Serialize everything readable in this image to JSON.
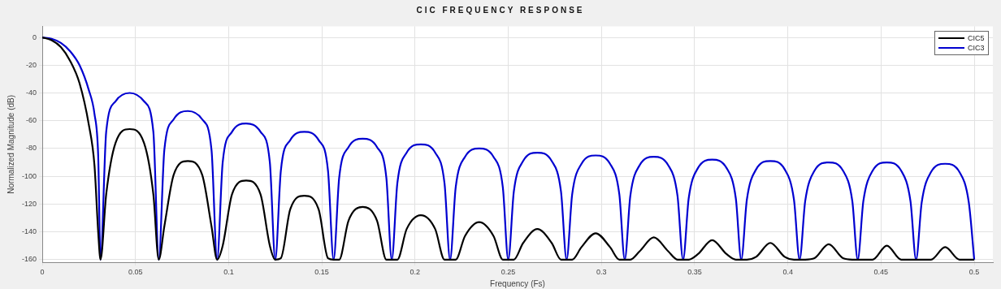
{
  "chart_data": {
    "type": "line",
    "title": "CIC FREQUENCY RESPONSE",
    "xlabel": "Frequency (Fs)",
    "ylabel": "Normalized Magnitude (dB)",
    "x": [
      0,
      0.005,
      0.01,
      0.015,
      0.02,
      0.025,
      0.028,
      0.03,
      0.03125,
      0.0343,
      0.0393,
      0.0469,
      0.0546,
      0.0596,
      0.0625,
      0.0655,
      0.0705,
      0.0781,
      0.0858,
      0.0908,
      0.0938,
      0.0968,
      0.1018,
      0.1094,
      0.1171,
      0.1221,
      0.125,
      0.128,
      0.133,
      0.1406,
      0.1483,
      0.1533,
      0.1563,
      0.1593,
      0.1643,
      0.1719,
      0.1796,
      0.1846,
      0.1875,
      0.1905,
      0.1955,
      0.2031,
      0.2108,
      0.2158,
      0.2188,
      0.2218,
      0.2268,
      0.2344,
      0.2421,
      0.2471,
      0.25,
      0.253,
      0.258,
      0.2656,
      0.2733,
      0.2783,
      0.2813,
      0.2843,
      0.2893,
      0.2969,
      0.3046,
      0.3096,
      0.3125,
      0.3155,
      0.3205,
      0.3281,
      0.3358,
      0.3408,
      0.3438,
      0.3468,
      0.3518,
      0.3594,
      0.3671,
      0.3721,
      0.375,
      0.378,
      0.383,
      0.3906,
      0.3983,
      0.4033,
      0.4063,
      0.4093,
      0.4143,
      0.4219,
      0.4296,
      0.4346,
      0.4375,
      0.4405,
      0.4455,
      0.4531,
      0.4608,
      0.4658,
      0.4688,
      0.4718,
      0.4768,
      0.4844,
      0.4921,
      0.4971,
      0.5
    ],
    "series": [
      {
        "name": "CIC5",
        "color": "#000000",
        "values": [
          0,
          -2,
          -7,
          -17,
          -33,
          -63,
          -92,
          -140,
          -160,
          -113,
          -76,
          -66,
          -76,
          -113,
          -160,
          -136,
          -99,
          -89,
          -99,
          -136,
          -160,
          -150,
          -113,
          -103,
          -113,
          -150,
          -160,
          -159,
          -124,
          -114,
          -124,
          -159,
          -160,
          -160,
          -132,
          -122,
          -132,
          -160,
          -160,
          -160,
          -138,
          -128,
          -138,
          -160,
          -160,
          -160,
          -143,
          -133,
          -143,
          -160,
          -160,
          -160,
          -148,
          -138,
          -148,
          -160,
          -160,
          -160,
          -151,
          -141,
          -151,
          -160,
          -160,
          -160,
          -154,
          -144,
          -154,
          -160,
          -160,
          -160,
          -156,
          -146,
          -156,
          -160,
          -160,
          -160,
          -158,
          -148,
          -158,
          -160,
          -160,
          -160,
          -159,
          -149,
          -159,
          -160,
          -160,
          -160,
          -160,
          -150,
          -160,
          -160,
          -160,
          -160,
          -160,
          -151,
          -160,
          -160,
          -160
        ]
      },
      {
        "name": "CIC3",
        "color": "#0000d0",
        "values": [
          0,
          -1,
          -4,
          -10,
          -20,
          -38,
          -55,
          -85,
          -160,
          -68,
          -46,
          -40,
          -46,
          -68,
          -160,
          -81,
          -59,
          -53,
          -59,
          -81,
          -160,
          -90,
          -68,
          -62,
          -68,
          -90,
          -160,
          -96,
          -74,
          -68,
          -74,
          -96,
          -160,
          -101,
          -79,
          -73,
          -79,
          -101,
          -160,
          -105,
          -83,
          -77,
          -83,
          -105,
          -160,
          -108,
          -86,
          -80,
          -86,
          -108,
          -160,
          -111,
          -89,
          -83,
          -89,
          -111,
          -160,
          -113,
          -91,
          -85,
          -91,
          -113,
          -160,
          -114,
          -92,
          -86,
          -92,
          -114,
          -160,
          -116,
          -94,
          -88,
          -94,
          -116,
          -160,
          -117,
          -95,
          -89,
          -95,
          -117,
          -160,
          -118,
          -96,
          -90,
          -96,
          -118,
          -160,
          -118,
          -96,
          -90,
          -96,
          -118,
          -160,
          -119,
          -97,
          -91,
          -97,
          -119,
          -160
        ]
      }
    ],
    "xlim": [
      0,
      0.51
    ],
    "xticks": [
      0,
      0.05,
      0.1,
      0.15,
      0.2,
      0.25,
      0.3,
      0.35,
      0.4,
      0.45,
      0.5
    ],
    "ylim": [
      -162,
      8
    ],
    "yticks": [
      0,
      -20,
      -40,
      -60,
      -80,
      -100,
      -120,
      -140,
      -160
    ],
    "grid": true,
    "legend": "top right",
    "marker": "none",
    "line_style": "solid"
  }
}
